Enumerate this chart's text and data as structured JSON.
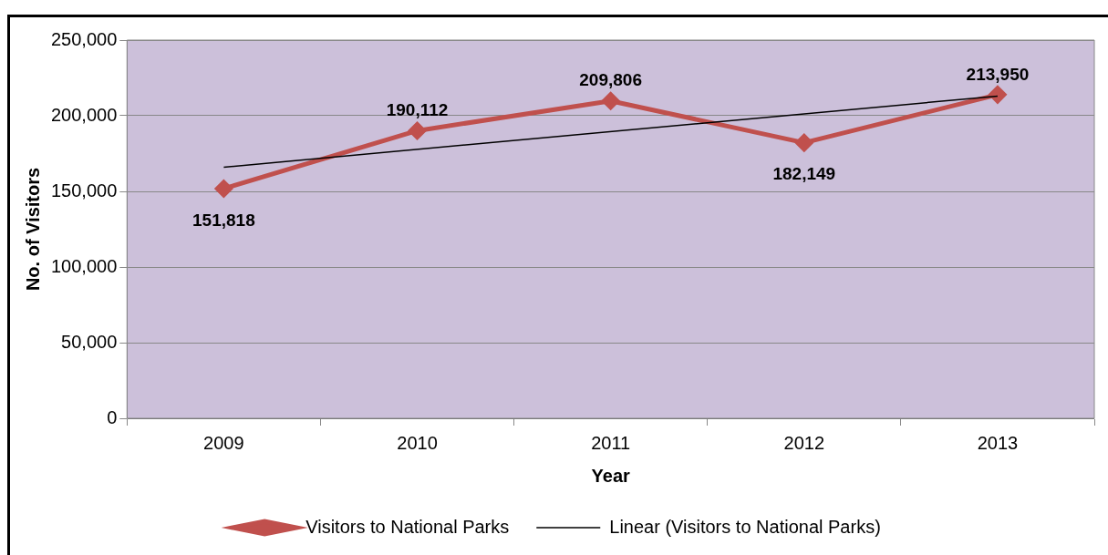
{
  "chart_data": {
    "type": "line",
    "xlabel": "Year",
    "ylabel": "No. of Visitors",
    "categories": [
      "2009",
      "2010",
      "2011",
      "2012",
      "2013"
    ],
    "series": [
      {
        "name": "Visitors to National Parks",
        "color": "#c0504d",
        "values": [
          151818,
          190112,
          209806,
          182149,
          213950
        ],
        "value_labels": [
          "151,818",
          "190,112",
          "209,806",
          "182,149",
          "213,950"
        ],
        "marker": "diamond"
      },
      {
        "name": "Linear (Visitors to National Parks)",
        "type": "line",
        "color": "#000000",
        "values": [
          166000,
          null,
          null,
          null,
          213000
        ],
        "marker": "none"
      }
    ],
    "ylim": [
      0,
      250000
    ],
    "yticks": [
      0,
      {
        "value": 50000,
        "label": "50,000"
      },
      {
        "value": 100000,
        "label": "100,000"
      },
      {
        "value": 150000,
        "label": "150,000"
      },
      {
        "value": 200000,
        "label": "200,000"
      },
      {
        "value": 250000,
        "label": "250,000"
      }
    ],
    "grid": "y",
    "legend": "bottom"
  }
}
